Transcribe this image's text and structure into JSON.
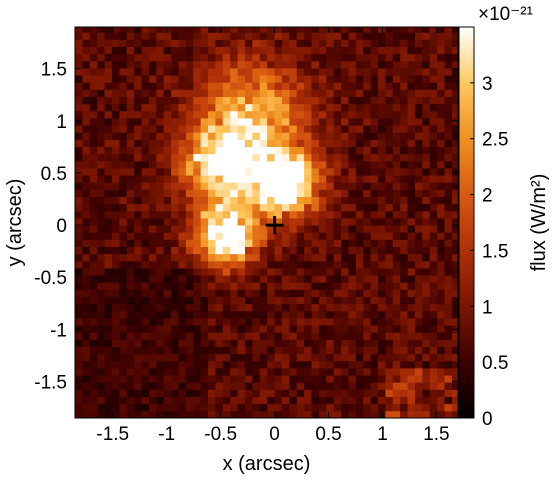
{
  "chart_data": {
    "type": "heatmap",
    "title": "",
    "xlabel": "x (arcsec)",
    "ylabel": "y (arcsec)",
    "xlim": [
      -1.85,
      1.7
    ],
    "ylim": [
      -1.85,
      1.9
    ],
    "xticks": [
      -1.5,
      -1,
      -0.5,
      0,
      0.5,
      1,
      1.5
    ],
    "xtick_labels": [
      "-1.5",
      "-1",
      "-0.5",
      "0",
      "0.5",
      "1",
      "1.5"
    ],
    "yticks": [
      -1.5,
      -1,
      -0.5,
      0,
      0.5,
      1,
      1.5
    ],
    "ytick_labels": [
      "-1.5",
      "-1",
      "-0.5",
      "0",
      "0.5",
      "1",
      "1.5"
    ],
    "colorbar": {
      "label": "flux (W/m²)",
      "multiplier": "×10⁻²¹",
      "range": [
        0,
        3.5
      ],
      "ticks": [
        0,
        0.5,
        1,
        1.5,
        2,
        2.5,
        3
      ],
      "tick_labels": [
        "0",
        "0.5",
        "1",
        "1.5",
        "2",
        "2.5",
        "3"
      ],
      "colormap": [
        "#000000",
        "#3d0000",
        "#7a1500",
        "#b03008",
        "#d85a10",
        "#f09020",
        "#ffc860",
        "#ffffff"
      ]
    },
    "marker": {
      "symbol": "+",
      "x": 0,
      "y": 0
    },
    "pixel_size_arcsec": 0.0685,
    "emission_peaks": [
      {
        "x": 0.1,
        "y": 0.4,
        "flux": 3.4,
        "sigma": 0.22
      },
      {
        "x": -0.45,
        "y": -0.1,
        "flux": 3.3,
        "sigma": 0.2
      },
      {
        "x": -0.5,
        "y": 0.55,
        "flux": 2.6,
        "sigma": 0.25
      },
      {
        "x": -0.2,
        "y": 1.05,
        "flux": 2.2,
        "sigma": 0.35
      }
    ],
    "background_flux": 0.8,
    "notes": ""
  }
}
